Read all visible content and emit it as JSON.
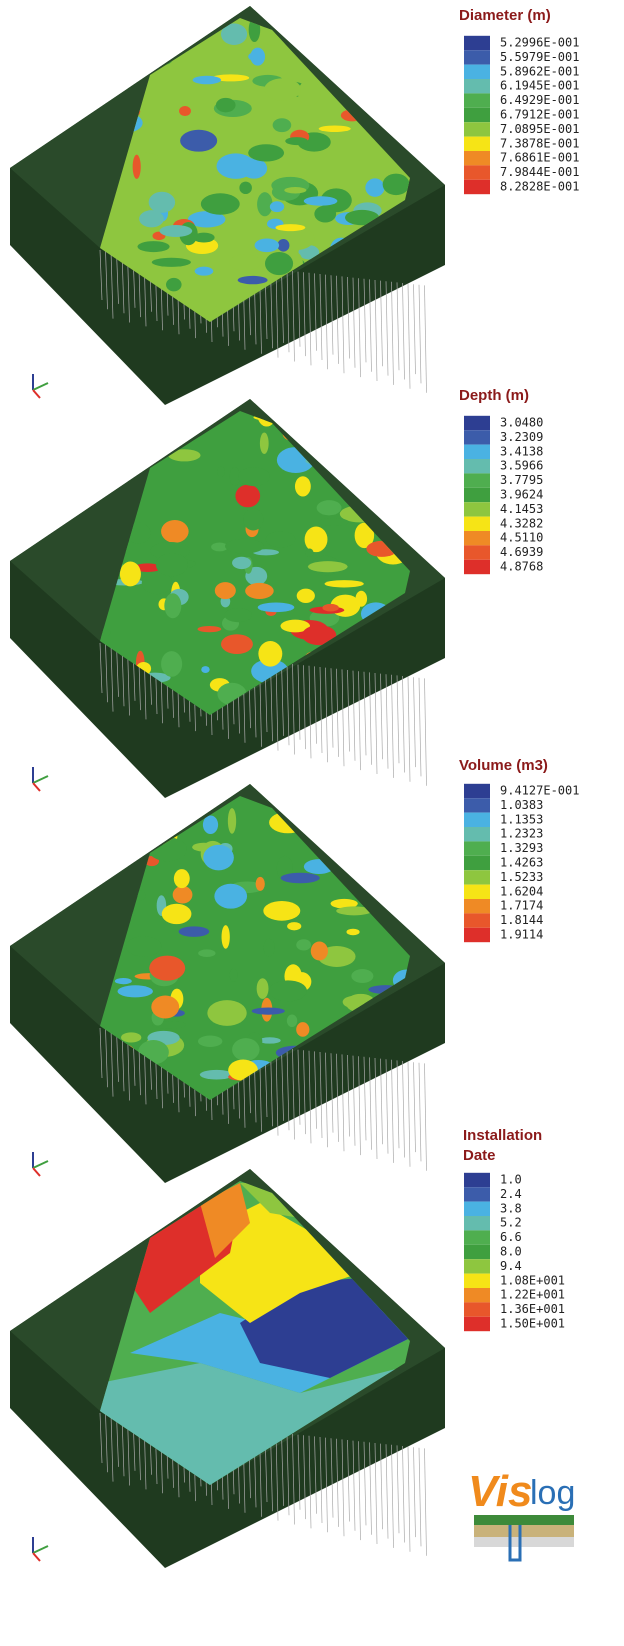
{
  "colors": [
    "#2d3e92",
    "#3c5caa",
    "#4ab2e2",
    "#64bcae",
    "#4fae4f",
    "#3f9f3f",
    "#8ec63f",
    "#f6e416",
    "#ef8a25",
    "#e8572b",
    "#de2f2a"
  ],
  "panels": [
    {
      "legend": {
        "title": "Diameter (m)",
        "items": [
          "5.2996E-001",
          "5.5979E-001",
          "5.8962E-001",
          "6.1945E-001",
          "6.4929E-001",
          "6.7912E-001",
          "7.0895E-001",
          "7.3878E-001",
          "7.6861E-001",
          "7.9844E-001",
          "8.2828E-001"
        ]
      }
    },
    {
      "legend": {
        "title": "Depth (m)",
        "items": [
          "3.0480",
          "3.2309",
          "3.4138",
          "3.5966",
          "3.7795",
          "3.9624",
          "4.1453",
          "4.3282",
          "4.5110",
          "4.6939",
          "4.8768"
        ]
      }
    },
    {
      "legend": {
        "title": "Volume (m3)",
        "items": [
          "9.4127E-001",
          "1.0383",
          "1.1353",
          "1.2323",
          "1.3293",
          "1.4263",
          "1.5233",
          "1.6204",
          "1.7174",
          "1.8144",
          "1.9114"
        ]
      }
    },
    {
      "legend": {
        "title": "Installation Date",
        "items": [
          "1.0",
          "2.4",
          "3.8",
          "5.2",
          "6.6",
          "8.0",
          "9.4",
          "1.08E+001",
          "1.22E+001",
          "1.36E+001",
          "1.50E+001"
        ]
      }
    }
  ],
  "logo": {
    "part1": "Vis",
    "part2": "log"
  }
}
